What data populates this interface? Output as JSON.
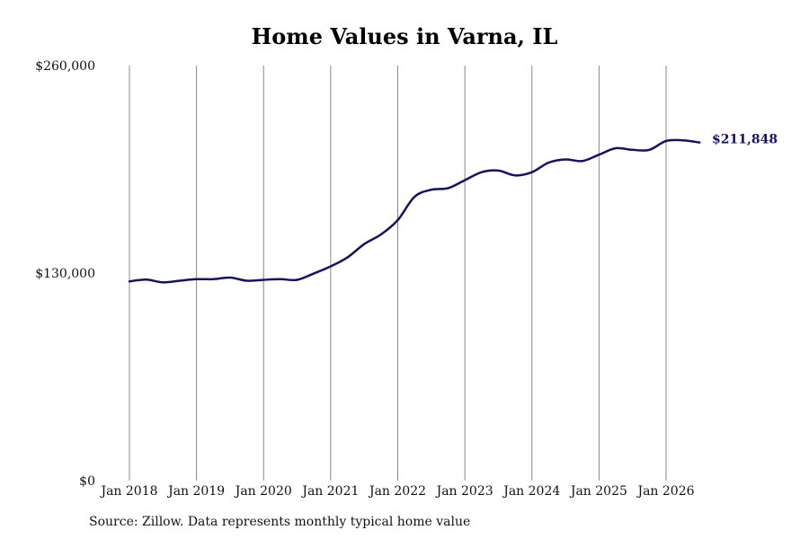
{
  "chart_data": {
    "type": "line",
    "title": "Home Values in Varna, IL",
    "xlabel": "",
    "ylabel": "",
    "ylim": [
      0,
      260000
    ],
    "y_ticks": [
      0,
      130000,
      260000
    ],
    "y_tick_labels": [
      "$0",
      "$130,000",
      "$260,000"
    ],
    "x_ticks": [
      "2018-01",
      "2019-01",
      "2020-01",
      "2021-01",
      "2022-01",
      "2023-01",
      "2024-01",
      "2025-01",
      "2026-01"
    ],
    "x_tick_labels": [
      "Jan 2018",
      "Jan 2019",
      "Jan 2020",
      "Jan 2021",
      "Jan 2022",
      "Jan 2023",
      "Jan 2024",
      "Jan 2025",
      "Jan 2026"
    ],
    "grid": "vertical lines at x ticks",
    "line_color": "#14145c",
    "grid_color": "#888888",
    "end_label": "$211,848",
    "series": [
      {
        "x": [
          "2018-01",
          "2018-04",
          "2018-07",
          "2018-10",
          "2019-01",
          "2019-04",
          "2019-07",
          "2019-10",
          "2020-01",
          "2020-04",
          "2020-07",
          "2020-10",
          "2021-01",
          "2021-04",
          "2021-07",
          "2021-10",
          "2022-01",
          "2022-04",
          "2022-07",
          "2022-10",
          "2023-01",
          "2023-04",
          "2023-07",
          "2023-10",
          "2024-01",
          "2024-04",
          "2024-07",
          "2024-10",
          "2025-01",
          "2025-04",
          "2025-07",
          "2025-10",
          "2026-01",
          "2026-04",
          "2026-07"
        ],
        "values": [
          124800,
          125900,
          124200,
          125200,
          126200,
          126200,
          127200,
          125200,
          125800,
          126200,
          125800,
          129800,
          134200,
          139800,
          148200,
          154200,
          163200,
          177800,
          182200,
          183200,
          188200,
          193200,
          194200,
          191200,
          193200,
          199200,
          201200,
          200200,
          204200,
          208200,
          207200,
          207200,
          212800,
          213200,
          211848
        ]
      }
    ]
  },
  "footer": {
    "source": "Source: Zillow. Data represents monthly typical home value"
  }
}
